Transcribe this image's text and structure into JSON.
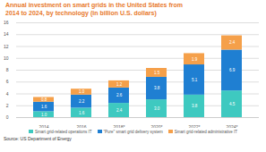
{
  "chart_data": {
    "type": "bar",
    "stacked": true,
    "data_labels": true,
    "grid": true,
    "title": "Annual investment on smart grids in the United States from 2014 to 2024, by technology (in billion U.S. dollars)",
    "source": "Source: US Department of Energy",
    "categories": [
      "2014",
      "2016",
      "2018*",
      "2020*",
      "2022*",
      "2024*"
    ],
    "series": [
      {
        "name": "Smart grid-related operations IT",
        "color": "#3ec9c0",
        "values": [
          1.0,
          1.6,
          2.4,
          3.0,
          3.8,
          4.5
        ],
        "value_labels": [
          "1.0",
          "1.6",
          "2.4",
          "3.0",
          "3.8",
          "4.5"
        ]
      },
      {
        "name": "\"Pure\" smart grid delivery system",
        "color": "#1f7fd2",
        "values": [
          1.6,
          2.2,
          2.6,
          3.8,
          5.1,
          6.9
        ],
        "value_labels": [
          "1.6",
          "2.2",
          "2.6",
          "3.8",
          "5.1",
          "6.9"
        ]
      },
      {
        "name": "Smart grid-related administrative IT",
        "color": "#f5a04a",
        "values": [
          0.8,
          1.0,
          1.2,
          1.5,
          1.9,
          2.4
        ],
        "value_labels": [
          "0.8",
          "1.0",
          "1.2",
          "1.5",
          "1.9",
          "2.4"
        ]
      }
    ],
    "ylim": [
      0,
      16
    ],
    "yticks": [
      0,
      2,
      4,
      6,
      8,
      10,
      12,
      14,
      16
    ],
    "legend": "bottom"
  }
}
